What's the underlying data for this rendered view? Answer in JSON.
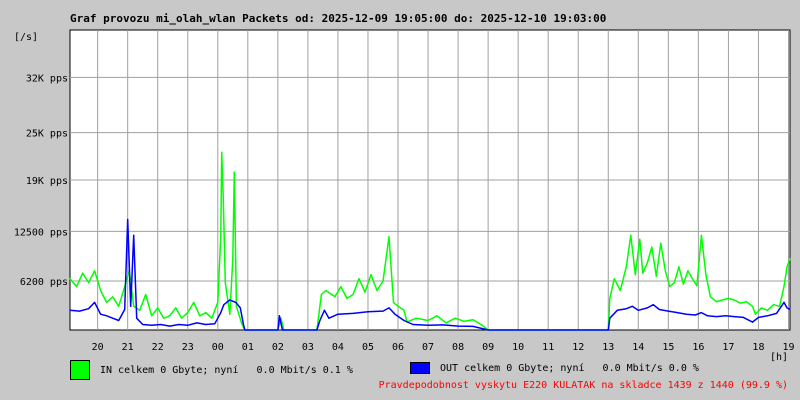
{
  "chart_data": {
    "type": "line",
    "title": "Graf provozu mi_olah_wlan Packets od: 2025-12-09 19:05:00 do: 2025-12-10 19:03:00",
    "ylabel": "[/s]",
    "xlabel": "[h]",
    "ylim": [
      0,
      38000
    ],
    "y_ticks": [
      {
        "value": 6200,
        "label": "6200 pps"
      },
      {
        "value": 12500,
        "label": "12500 pps"
      },
      {
        "value": 19000,
        "label": "19K pps"
      },
      {
        "value": 25000,
        "label": "25K pps"
      },
      {
        "value": 32000,
        "label": "32K pps"
      }
    ],
    "x_ticks": [
      {
        "value": 20,
        "label": "20"
      },
      {
        "value": 21,
        "label": "21"
      },
      {
        "value": 22,
        "label": "22"
      },
      {
        "value": 23,
        "label": "23"
      },
      {
        "value": 24,
        "label": "00"
      },
      {
        "value": 25,
        "label": "01"
      },
      {
        "value": 26,
        "label": "02"
      },
      {
        "value": 27,
        "label": "03"
      },
      {
        "value": 28,
        "label": "04"
      },
      {
        "value": 29,
        "label": "05"
      },
      {
        "value": 30,
        "label": "06"
      },
      {
        "value": 31,
        "label": "07"
      },
      {
        "value": 32,
        "label": "08"
      },
      {
        "value": 33,
        "label": "09"
      },
      {
        "value": 34,
        "label": "10"
      },
      {
        "value": 35,
        "label": "11"
      },
      {
        "value": 36,
        "label": "12"
      },
      {
        "value": 37,
        "label": "13"
      },
      {
        "value": 38,
        "label": "14"
      },
      {
        "value": 39,
        "label": "15"
      },
      {
        "value": 40,
        "label": "16"
      },
      {
        "value": 41,
        "label": "17"
      },
      {
        "value": 42,
        "label": "18"
      },
      {
        "value": 43,
        "label": "19"
      }
    ],
    "xlim": [
      19.08,
      43.05
    ],
    "grid": true,
    "series": [
      {
        "name": "IN",
        "color": "#00ff00",
        "points": [
          [
            19.08,
            6500
          ],
          [
            19.3,
            5500
          ],
          [
            19.5,
            7200
          ],
          [
            19.7,
            6000
          ],
          [
            19.9,
            7500
          ],
          [
            20.1,
            5000
          ],
          [
            20.3,
            3500
          ],
          [
            20.5,
            4200
          ],
          [
            20.7,
            3000
          ],
          [
            20.9,
            5500
          ],
          [
            21.05,
            7500
          ],
          [
            21.2,
            3000
          ],
          [
            21.4,
            2500
          ],
          [
            21.6,
            4500
          ],
          [
            21.8,
            1800
          ],
          [
            22.0,
            2800
          ],
          [
            22.2,
            1500
          ],
          [
            22.4,
            1800
          ],
          [
            22.6,
            2800
          ],
          [
            22.8,
            1500
          ],
          [
            23.0,
            2200
          ],
          [
            23.2,
            3500
          ],
          [
            23.4,
            1800
          ],
          [
            23.6,
            2200
          ],
          [
            23.8,
            1500
          ],
          [
            24.0,
            3500
          ],
          [
            24.1,
            12000
          ],
          [
            24.13,
            22500
          ],
          [
            24.18,
            17000
          ],
          [
            24.25,
            6000
          ],
          [
            24.4,
            2000
          ],
          [
            24.5,
            9000
          ],
          [
            24.55,
            20000
          ],
          [
            24.62,
            3000
          ],
          [
            24.8,
            800
          ],
          [
            24.9,
            0
          ],
          [
            26.0,
            0
          ],
          [
            26.1,
            1500
          ],
          [
            26.2,
            0
          ],
          [
            27.3,
            0
          ],
          [
            27.45,
            4500
          ],
          [
            27.6,
            5000
          ],
          [
            27.9,
            4200
          ],
          [
            28.1,
            5500
          ],
          [
            28.3,
            4000
          ],
          [
            28.5,
            4500
          ],
          [
            28.7,
            6500
          ],
          [
            28.9,
            4800
          ],
          [
            29.1,
            7000
          ],
          [
            29.3,
            5000
          ],
          [
            29.5,
            6200
          ],
          [
            29.7,
            11800
          ],
          [
            29.85,
            3500
          ],
          [
            30.0,
            3000
          ],
          [
            30.2,
            2500
          ],
          [
            30.3,
            1000
          ],
          [
            30.6,
            1500
          ],
          [
            31.0,
            1200
          ],
          [
            31.3,
            1800
          ],
          [
            31.6,
            900
          ],
          [
            31.9,
            1500
          ],
          [
            32.2,
            1100
          ],
          [
            32.5,
            1300
          ],
          [
            32.8,
            600
          ],
          [
            33.0,
            0
          ],
          [
            37.0,
            0
          ],
          [
            37.05,
            4000
          ],
          [
            37.2,
            6500
          ],
          [
            37.4,
            5000
          ],
          [
            37.6,
            8000
          ],
          [
            37.75,
            12000
          ],
          [
            37.9,
            7000
          ],
          [
            38.05,
            11500
          ],
          [
            38.15,
            7200
          ],
          [
            38.3,
            8500
          ],
          [
            38.45,
            10500
          ],
          [
            38.6,
            6800
          ],
          [
            38.75,
            11000
          ],
          [
            38.9,
            7500
          ],
          [
            39.05,
            5500
          ],
          [
            39.2,
            6000
          ],
          [
            39.35,
            8000
          ],
          [
            39.5,
            5800
          ],
          [
            39.65,
            7500
          ],
          [
            39.8,
            6500
          ],
          [
            39.95,
            5600
          ],
          [
            40.1,
            12000
          ],
          [
            40.25,
            7000
          ],
          [
            40.4,
            4200
          ],
          [
            40.6,
            3600
          ],
          [
            40.8,
            3800
          ],
          [
            41.0,
            4000
          ],
          [
            41.2,
            3800
          ],
          [
            41.4,
            3400
          ],
          [
            41.6,
            3600
          ],
          [
            41.8,
            3000
          ],
          [
            41.9,
            2000
          ],
          [
            42.1,
            2800
          ],
          [
            42.3,
            2500
          ],
          [
            42.5,
            3200
          ],
          [
            42.7,
            3000
          ],
          [
            42.85,
            5500
          ],
          [
            42.95,
            8000
          ],
          [
            43.05,
            9000
          ]
        ]
      },
      {
        "name": "OUT",
        "color": "#0000ff",
        "points": [
          [
            19.08,
            2500
          ],
          [
            19.4,
            2400
          ],
          [
            19.7,
            2700
          ],
          [
            19.9,
            3500
          ],
          [
            20.1,
            2000
          ],
          [
            20.3,
            1800
          ],
          [
            20.5,
            1500
          ],
          [
            20.7,
            1200
          ],
          [
            20.9,
            2600
          ],
          [
            21.0,
            14000
          ],
          [
            21.1,
            3000
          ],
          [
            21.2,
            12000
          ],
          [
            21.3,
            1500
          ],
          [
            21.5,
            700
          ],
          [
            21.8,
            600
          ],
          [
            22.1,
            700
          ],
          [
            22.4,
            500
          ],
          [
            22.7,
            700
          ],
          [
            23.0,
            600
          ],
          [
            23.3,
            900
          ],
          [
            23.6,
            700
          ],
          [
            23.9,
            800
          ],
          [
            24.0,
            1500
          ],
          [
            24.1,
            2200
          ],
          [
            24.2,
            3200
          ],
          [
            24.4,
            3800
          ],
          [
            24.6,
            3500
          ],
          [
            24.75,
            2800
          ],
          [
            24.85,
            800
          ],
          [
            24.9,
            0
          ],
          [
            26.0,
            0
          ],
          [
            26.05,
            1800
          ],
          [
            26.15,
            0
          ],
          [
            27.3,
            0
          ],
          [
            27.4,
            1200
          ],
          [
            27.55,
            2500
          ],
          [
            27.7,
            1500
          ],
          [
            28.0,
            2000
          ],
          [
            28.5,
            2100
          ],
          [
            29.0,
            2300
          ],
          [
            29.5,
            2400
          ],
          [
            29.7,
            2800
          ],
          [
            29.9,
            2000
          ],
          [
            30.2,
            1200
          ],
          [
            30.5,
            700
          ],
          [
            31.0,
            600
          ],
          [
            31.5,
            650
          ],
          [
            32.0,
            500
          ],
          [
            32.5,
            450
          ],
          [
            33.0,
            0
          ],
          [
            37.0,
            0
          ],
          [
            37.05,
            1500
          ],
          [
            37.3,
            2500
          ],
          [
            37.6,
            2700
          ],
          [
            37.8,
            3000
          ],
          [
            38.0,
            2500
          ],
          [
            38.3,
            2800
          ],
          [
            38.5,
            3200
          ],
          [
            38.7,
            2600
          ],
          [
            39.0,
            2400
          ],
          [
            39.3,
            2200
          ],
          [
            39.6,
            2000
          ],
          [
            39.9,
            1900
          ],
          [
            40.1,
            2200
          ],
          [
            40.3,
            1800
          ],
          [
            40.6,
            1700
          ],
          [
            40.9,
            1800
          ],
          [
            41.2,
            1700
          ],
          [
            41.5,
            1600
          ],
          [
            41.8,
            1000
          ],
          [
            42.0,
            1600
          ],
          [
            42.3,
            1800
          ],
          [
            42.6,
            2100
          ],
          [
            42.85,
            3500
          ],
          [
            42.95,
            2800
          ],
          [
            43.05,
            2600
          ]
        ]
      }
    ]
  },
  "legend": {
    "in_label": "IN celkem 0 Gbyte; nyní   0.0 Mbit/s 0.1 %",
    "in_color": "#00ff00",
    "out_label": "OUT celkem 0 Gbyte; nyní   0.0 Mbit/s 0.0 %",
    "out_color": "#0000ff"
  },
  "footer_note": "Pravdepodobnost vyskytu E220 KULATAK na skladce 1439 z 1440 (99.9 %)"
}
